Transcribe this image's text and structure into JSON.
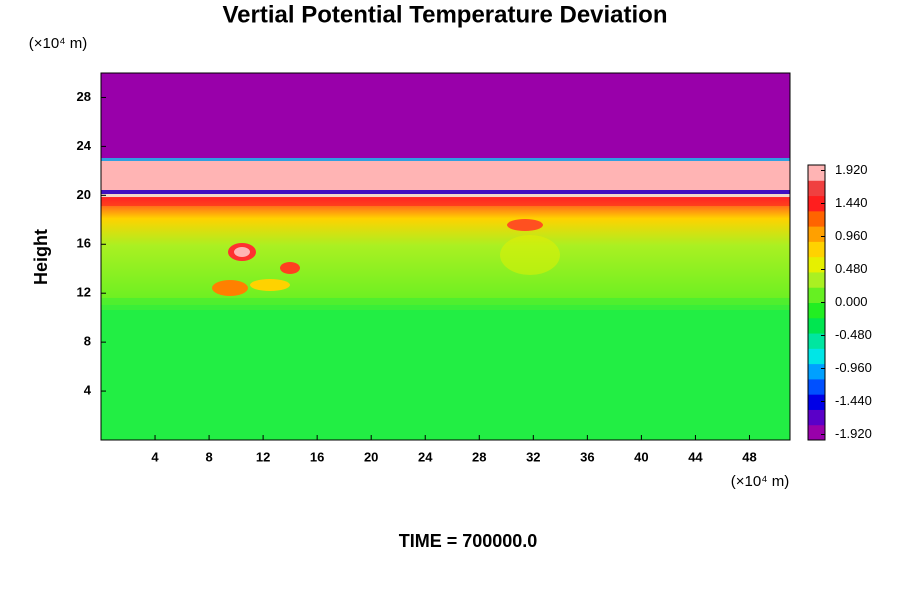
{
  "chart_data": {
    "type": "contour",
    "title": "Vertial Potential Temperature Deviation",
    "y_unit_label": "(×10⁴ m)",
    "x_unit_label": "(×10⁴ m)",
    "ylabel": "Height",
    "footer": "TIME = 700000.0",
    "xlim": [
      0,
      51
    ],
    "xticks": [
      4,
      8,
      12,
      16,
      20,
      24,
      28,
      32,
      36,
      40,
      44,
      48
    ],
    "ylim": [
      0,
      30
    ],
    "yticks": [
      4,
      8,
      12,
      16,
      20,
      24,
      28
    ],
    "colorbar": {
      "lim": [
        -2,
        2
      ],
      "ticks": [
        {
          "value": 1.92,
          "label": "1.920"
        },
        {
          "value": 1.44,
          "label": "1.440"
        },
        {
          "value": 0.96,
          "label": "0.960"
        },
        {
          "value": 0.48,
          "label": "0.480"
        },
        {
          "value": 0,
          "label": "0.000"
        },
        {
          "value": -0.48,
          "label": "-0.480"
        },
        {
          "value": -0.96,
          "label": "-0.960"
        },
        {
          "value": -1.44,
          "label": "-1.440"
        },
        {
          "value": -1.92,
          "label": "-1.920"
        }
      ],
      "colors": [
        "#9900aa",
        "#5a00c8",
        "#0000e6",
        "#0050ff",
        "#00a0ff",
        "#00e6e6",
        "#00e6a0",
        "#00e650",
        "#22ee22",
        "#66f022",
        "#aaf022",
        "#e6f000",
        "#ffd200",
        "#ffa000",
        "#ff6400",
        "#ff1e1e",
        "#f04040",
        "#ffb4b4"
      ]
    }
  }
}
